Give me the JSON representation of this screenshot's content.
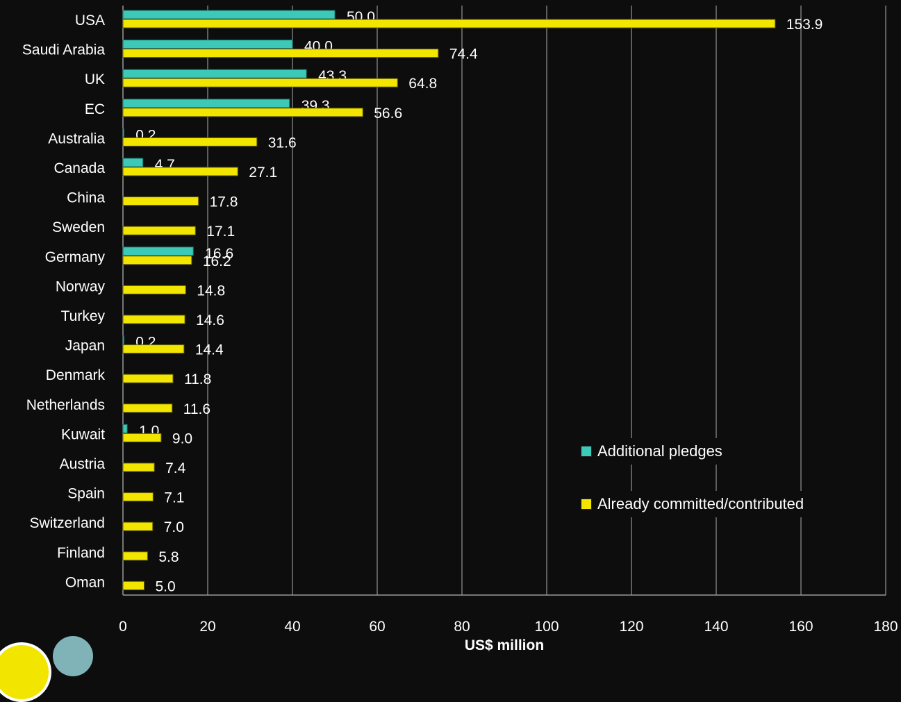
{
  "chart_data": {
    "type": "bar",
    "orientation": "horizontal",
    "xlabel": "US$ million",
    "xlim": [
      0,
      180
    ],
    "xticks": [
      0,
      20,
      40,
      60,
      80,
      100,
      120,
      140,
      160,
      180
    ],
    "grid": true,
    "legend_position": "right",
    "categories": [
      "USA",
      "Saudi Arabia",
      "UK",
      "EC",
      "Australia",
      "Canada",
      "China",
      "Sweden",
      "Germany",
      "Norway",
      "Turkey",
      "Japan",
      "Denmark",
      "Netherlands",
      "Kuwait",
      "Austria",
      "Spain",
      "Switzerland",
      "Finland",
      "Oman"
    ],
    "series": [
      {
        "name": "Additional pledges",
        "color": "#3cc9b8",
        "values": [
          50.0,
          40.0,
          43.3,
          39.3,
          0.2,
          4.7,
          null,
          null,
          16.6,
          null,
          null,
          0.2,
          null,
          null,
          1.0,
          null,
          null,
          null,
          null,
          null
        ],
        "labels": [
          "50.0",
          "40.0",
          "43.3",
          "39.3",
          "0.2",
          "4.7",
          "",
          "",
          "16.6",
          "",
          "",
          "0.2",
          "",
          "",
          "1.0",
          "",
          "",
          "",
          "",
          ""
        ]
      },
      {
        "name": "Already committed/contributed",
        "color": "#f2e600",
        "values": [
          153.9,
          74.4,
          64.8,
          56.6,
          31.6,
          27.1,
          17.8,
          17.1,
          16.2,
          14.8,
          14.6,
          14.4,
          11.8,
          11.6,
          9.0,
          7.4,
          7.1,
          7.0,
          5.8,
          5.0
        ],
        "labels": [
          "153.9",
          "74.4",
          "64.8",
          "56.6",
          "31.6",
          "27.1",
          "17.8",
          "17.1",
          "16.2",
          "14.8",
          "14.6",
          "14.4",
          "11.8",
          "11.6",
          "9.0",
          "7.4",
          "7.1",
          "7.0",
          "5.8",
          "5.0"
        ]
      }
    ]
  },
  "legend": {
    "items": [
      {
        "label": "Additional pledges",
        "color": "#3cc9b8"
      },
      {
        "label": "Already committed/contributed",
        "color": "#f2e600"
      }
    ]
  },
  "decoration": {
    "circle1_color": "#f2e600",
    "circle2_color": "#7fb3b8"
  }
}
